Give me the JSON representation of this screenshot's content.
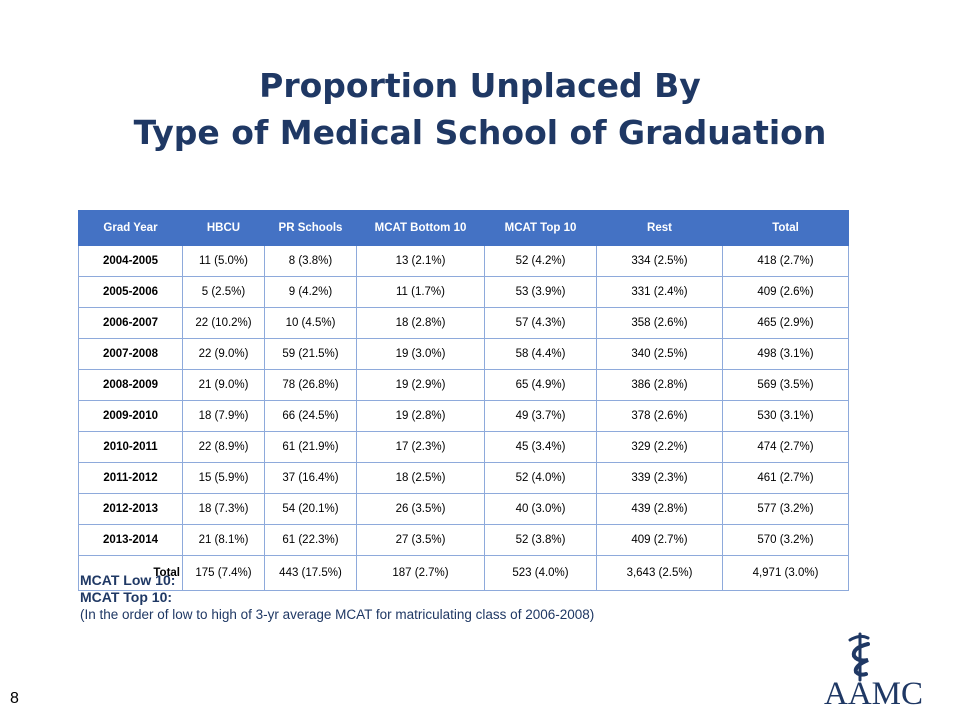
{
  "title": {
    "line1": "Proportion Unplaced By",
    "line2": "Type of Medical School of Graduation"
  },
  "table": {
    "headers": [
      "Grad Year",
      "HBCU",
      "PR Schools",
      "MCAT Bottom 10",
      "MCAT Top 10",
      "Rest",
      "Total"
    ],
    "rows": [
      [
        "2004-2005",
        "11 (5.0%)",
        "8 (3.8%)",
        "13 (2.1%)",
        "52 (4.2%)",
        "334 (2.5%)",
        "418 (2.7%)"
      ],
      [
        "2005-2006",
        "5 (2.5%)",
        "9 (4.2%)",
        "11 (1.7%)",
        "53 (3.9%)",
        "331 (2.4%)",
        "409 (2.6%)"
      ],
      [
        "2006-2007",
        "22 (10.2%)",
        "10 (4.5%)",
        "18 (2.8%)",
        "57 (4.3%)",
        "358 (2.6%)",
        "465 (2.9%)"
      ],
      [
        "2007-2008",
        "22 (9.0%)",
        "59 (21.5%)",
        "19 (3.0%)",
        "58 (4.4%)",
        "340 (2.5%)",
        "498 (3.1%)"
      ],
      [
        "2008-2009",
        "21 (9.0%)",
        "78 (26.8%)",
        "19 (2.9%)",
        "65 (4.9%)",
        "386 (2.8%)",
        "569 (3.5%)"
      ],
      [
        "2009-2010",
        "18 (7.9%)",
        "66 (24.5%)",
        "19 (2.8%)",
        "49 (3.7%)",
        "378 (2.6%)",
        "530 (3.1%)"
      ],
      [
        "2010-2011",
        "22 (8.9%)",
        "61 (21.9%)",
        "17 (2.3%)",
        "45 (3.4%)",
        "329 (2.2%)",
        "474 (2.7%)"
      ],
      [
        "2011-2012",
        "15 (5.9%)",
        "37 (16.4%)",
        "18 (2.5%)",
        "52 (4.0%)",
        "339 (2.3%)",
        "461 (2.7%)"
      ],
      [
        "2012-2013",
        "18 (7.3%)",
        "54 (20.1%)",
        "26 (3.5%)",
        "40 (3.0%)",
        "439 (2.8%)",
        "577 (3.2%)"
      ],
      [
        "2013-2014",
        "21 (8.1%)",
        "61 (22.3%)",
        "27 (3.5%)",
        "52 (3.8%)",
        "409 (2.7%)",
        "570 (3.2%)"
      ],
      [
        "Total",
        "175 (7.4%)",
        "443 (17.5%)",
        "187 (2.7%)",
        "523 (4.0%)",
        "3,643 (2.5%)",
        "4,971 (3.0%)"
      ]
    ]
  },
  "notes": {
    "line1": "MCAT Low 10:",
    "line2": "MCAT Top 10:",
    "line3": "(In the order of low to high of 3-yr average MCAT for matriculating class of 2006-2008)"
  },
  "page_number": "8",
  "logo": {
    "text": "AAMC",
    "icon": "caduceus-icon"
  },
  "colors": {
    "title": "#1f3864",
    "header_bg": "#4472c4",
    "header_text": "#ffffff",
    "border": "#8eaadb"
  }
}
